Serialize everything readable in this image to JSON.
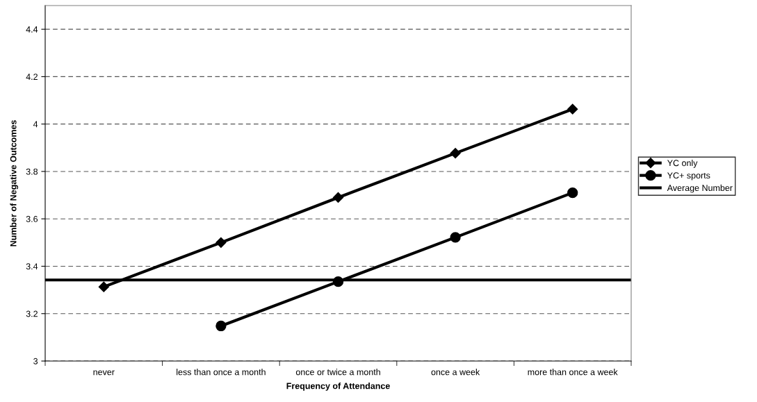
{
  "chart_data": {
    "type": "line",
    "xlabel": "Frequency of Attendance",
    "ylabel": "Number of Negative Outcomes",
    "categories": [
      "never",
      "less than once a month",
      "once or twice a month",
      "once a week",
      "more than once a week"
    ],
    "series": [
      {
        "name": "YC only",
        "color": "#000000",
        "marker": "diamond",
        "values": [
          3.313,
          3.5,
          3.69,
          3.877,
          4.063
        ]
      },
      {
        "name": "YC+ sports",
        "color": "#000000",
        "marker": "circle",
        "values": [
          null,
          3.148,
          3.335,
          3.522,
          3.71
        ]
      }
    ],
    "ref_lines": [
      {
        "axis": "y",
        "value": 3.342,
        "label": "Average Number",
        "color": "#000000",
        "line_style": "solid"
      }
    ],
    "ylim": [
      3,
      4.5
    ],
    "yticks": [
      3,
      3.2,
      3.4,
      3.6,
      3.8,
      4,
      4.2,
      4.4
    ],
    "grid": "y",
    "legend": "right",
    "line_style": "solid"
  }
}
